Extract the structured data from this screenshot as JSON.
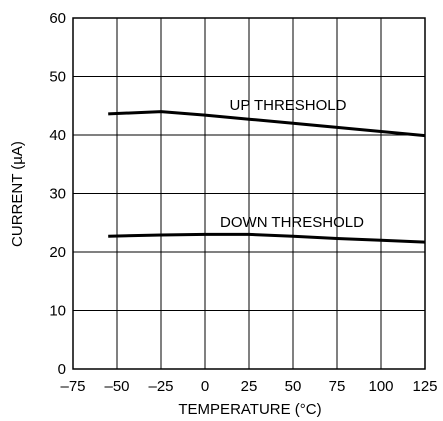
{
  "chart_data": {
    "type": "line",
    "title": "",
    "xlabel": "TEMPERATURE (°C)",
    "ylabel": "CURRENT (µA)",
    "xlim": [
      -75,
      125
    ],
    "ylim": [
      0,
      60
    ],
    "x_ticks": [
      -75,
      -50,
      -25,
      0,
      25,
      50,
      75,
      100,
      125
    ],
    "x_tick_labels": [
      "–75",
      "–50",
      "–25",
      "0",
      "25",
      "50",
      "75",
      "100",
      "125"
    ],
    "y_ticks": [
      0,
      10,
      20,
      30,
      40,
      50,
      60
    ],
    "y_tick_labels": [
      "0",
      "10",
      "20",
      "30",
      "40",
      "50",
      "60"
    ],
    "grid": true,
    "line_color": "#000000",
    "series": [
      {
        "annotation": "UP THRESHOLD",
        "x": [
          -55,
          -25,
          0,
          25,
          50,
          75,
          100,
          125
        ],
        "y": [
          43.6,
          44.0,
          43.4,
          42.7,
          42.0,
          41.3,
          40.6,
          39.9
        ]
      },
      {
        "annotation": "DOWN THRESHOLD",
        "x": [
          -55,
          -25,
          0,
          25,
          50,
          75,
          100,
          125
        ],
        "y": [
          22.7,
          22.9,
          23.0,
          23.0,
          22.7,
          22.3,
          22.0,
          21.7
        ]
      }
    ]
  }
}
